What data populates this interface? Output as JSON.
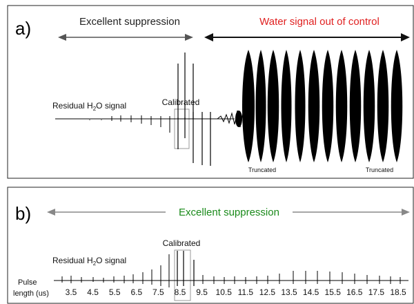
{
  "panel_a": {
    "label": "a)",
    "left_arrow_label": "Excellent suppression",
    "right_arrow_label": "Water signal out of control",
    "residual_label": "Residual H",
    "residual_sub": "2",
    "residual_suffix": "O signal",
    "calibrated_label": "Calibrated",
    "truncated_left": "Truncated",
    "truncated_right": "Truncated"
  },
  "panel_b": {
    "label": "b)",
    "arrow_label": "Excellent suppression",
    "residual_label": "Residual H",
    "residual_sub": "2",
    "residual_suffix": "O signal",
    "calibrated_label": "Calibrated",
    "pulse_label_line1": "Pulse",
    "pulse_label_line2": "length (us)",
    "ticks": [
      "3.5",
      "4.5",
      "5.5",
      "6.5",
      "7.5",
      "8.5",
      "9.5",
      "10.5",
      "11.5",
      "12.5",
      "13.5",
      "14.5",
      "15.5",
      "16.5",
      "17.5",
      "18.5"
    ],
    "calibrated_tick": "8.5"
  },
  "colors": {
    "dark_arrow": "#555555",
    "red_label": "#e02020",
    "green_label": "#1a8a1a",
    "b_arrow": "#888888",
    "box": "#999999",
    "signal": "#000000",
    "panel_border": "#222222"
  }
}
